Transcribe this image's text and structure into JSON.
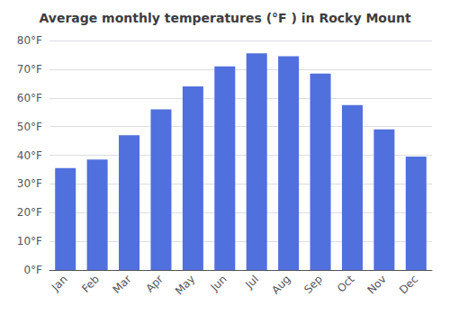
{
  "chart_data": {
    "type": "bar",
    "title": "Average monthly temperatures (°F ) in Rocky Mount",
    "categories": [
      "Jan",
      "Feb",
      "Mar",
      "Apr",
      "May",
      "Jun",
      "Jul",
      "Aug",
      "Sep",
      "Oct",
      "Nov",
      "Dec"
    ],
    "values": [
      35.5,
      38.5,
      47.0,
      56.0,
      64.0,
      71.0,
      75.5,
      74.5,
      68.5,
      57.5,
      49.0,
      39.5
    ],
    "ylim": [
      0,
      80
    ],
    "yticks": [
      {
        "value": 0,
        "label": "0°F"
      },
      {
        "value": 10,
        "label": "10°F"
      },
      {
        "value": 20,
        "label": "20°F"
      },
      {
        "value": 30,
        "label": "30°F"
      },
      {
        "value": 40,
        "label": "40°F"
      },
      {
        "value": 50,
        "label": "50°F"
      },
      {
        "value": 60,
        "label": "60°F"
      },
      {
        "value": 70,
        "label": "70°F"
      },
      {
        "value": 80,
        "label": "80°F"
      }
    ],
    "grid": true
  }
}
